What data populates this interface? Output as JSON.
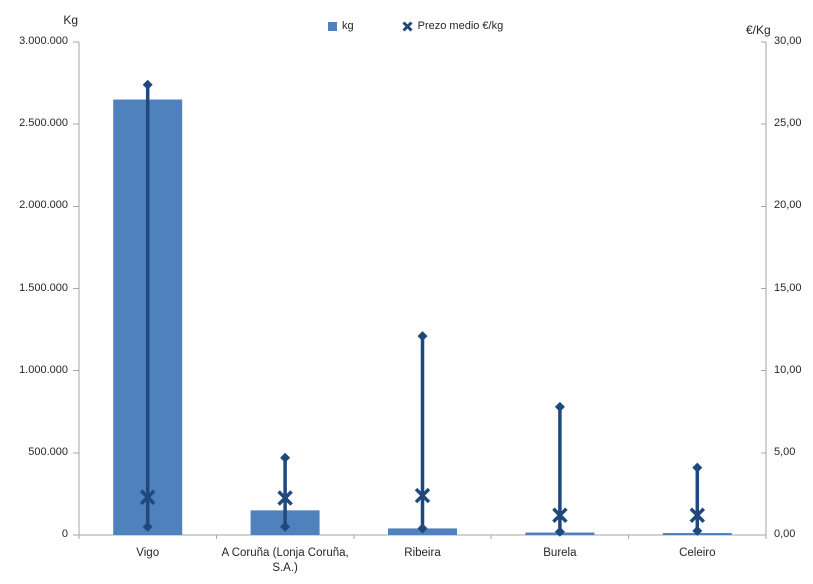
{
  "chart_data": {
    "type": "bar",
    "categories": [
      "Vigo",
      "A Coruña (Lonja Coruña, S.A.)",
      "Ribeira",
      "Burela",
      "Celeiro"
    ],
    "series": [
      {
        "name": "kg",
        "type": "bar",
        "axis": "left",
        "values": [
          2650000,
          150000,
          40000,
          15000,
          12000
        ]
      },
      {
        "name": "Prezo medio €/kg",
        "type": "high-low-mean",
        "axis": "right",
        "high": [
          27.4,
          4.7,
          12.1,
          7.8,
          4.1
        ],
        "low": [
          0.5,
          0.5,
          0.4,
          0.2,
          0.25
        ],
        "mean": [
          2.3,
          2.25,
          2.4,
          1.2,
          1.2
        ]
      }
    ],
    "axes": {
      "left": {
        "title": "Kg",
        "min": 0,
        "max": 3000000,
        "tick_values": [
          0,
          500000,
          1000000,
          1500000,
          2000000,
          2500000,
          3000000
        ],
        "tick_labels": [
          "0",
          "500.000",
          "1.000.000",
          "1.500.000",
          "2.000.000",
          "2.500.000",
          "3.000.000"
        ]
      },
      "right": {
        "title": "€/Kg",
        "min": 0,
        "max": 30,
        "tick_values": [
          0,
          5,
          10,
          15,
          20,
          25,
          30
        ],
        "tick_labels": [
          "0,00",
          "5,00",
          "10,00",
          "15,00",
          "20,00",
          "25,00",
          "30,00"
        ]
      }
    },
    "legend": [
      {
        "label": "kg",
        "marker": "square"
      },
      {
        "label": "Prezo medio €/kg",
        "marker": "x"
      }
    ],
    "grid": false,
    "legend_position": "top-center"
  },
  "colors": {
    "bar": "#4F81BD",
    "line": "#1F497D",
    "axis": "#A6A6A6",
    "text": "#262626",
    "background": "#FFFFFF"
  }
}
